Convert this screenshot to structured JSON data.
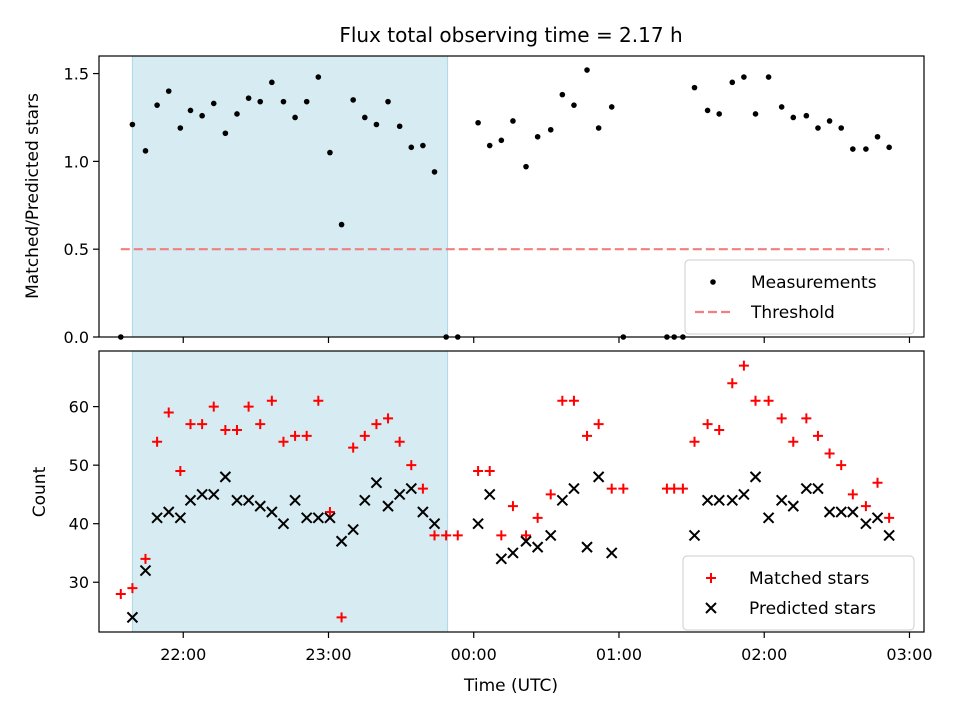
{
  "chart_data": {
    "title": "Flux total observing time = 2.17 h",
    "xlabel": "Time (UTC)",
    "x_unit": "hours UTC",
    "xlim": [
      21.42,
      27.1
    ],
    "x_ticks": [
      {
        "value": 22,
        "label": "22:00"
      },
      {
        "value": 23,
        "label": "23:00"
      },
      {
        "value": 24,
        "label": "00:00"
      },
      {
        "value": 25,
        "label": "01:00"
      },
      {
        "value": 26,
        "label": "02:00"
      },
      {
        "value": 27,
        "label": "03:00"
      }
    ],
    "shaded_interval": {
      "x": [
        21.65,
        23.82
      ],
      "color": "#add8e6"
    },
    "top_panel": {
      "type": "scatter",
      "ylabel": "Matched/Predicted stars",
      "ylim": [
        0,
        1.6
      ],
      "y_ticks": [
        0.0,
        0.5,
        1.0,
        1.5
      ],
      "y_tick_labels": [
        "0.0",
        "0.5",
        "1.0",
        "1.5"
      ],
      "legend_position": "lower-right",
      "series": [
        {
          "name": "Measurements",
          "marker": "dot",
          "color": "#000000",
          "points": [
            [
              21.57,
              0.0
            ],
            [
              21.65,
              1.21
            ],
            [
              21.74,
              1.06
            ],
            [
              21.82,
              1.32
            ],
            [
              21.9,
              1.4
            ],
            [
              21.98,
              1.19
            ],
            [
              22.05,
              1.29
            ],
            [
              22.13,
              1.26
            ],
            [
              22.21,
              1.33
            ],
            [
              22.29,
              1.16
            ],
            [
              22.37,
              1.27
            ],
            [
              22.45,
              1.36
            ],
            [
              22.53,
              1.34
            ],
            [
              22.61,
              1.45
            ],
            [
              22.69,
              1.34
            ],
            [
              22.77,
              1.25
            ],
            [
              22.85,
              1.34
            ],
            [
              22.93,
              1.48
            ],
            [
              23.01,
              1.05
            ],
            [
              23.09,
              0.64
            ],
            [
              23.17,
              1.35
            ],
            [
              23.25,
              1.25
            ],
            [
              23.33,
              1.21
            ],
            [
              23.41,
              1.34
            ],
            [
              23.49,
              1.2
            ],
            [
              23.57,
              1.08
            ],
            [
              23.65,
              1.09
            ],
            [
              23.73,
              0.94
            ],
            [
              23.81,
              0.0
            ],
            [
              23.89,
              0.0
            ],
            [
              24.03,
              1.22
            ],
            [
              24.11,
              1.09
            ],
            [
              24.19,
              1.12
            ],
            [
              24.27,
              1.23
            ],
            [
              24.36,
              0.97
            ],
            [
              24.44,
              1.14
            ],
            [
              24.53,
              1.18
            ],
            [
              24.61,
              1.38
            ],
            [
              24.69,
              1.32
            ],
            [
              24.78,
              1.52
            ],
            [
              24.86,
              1.19
            ],
            [
              24.95,
              1.31
            ],
            [
              25.03,
              0.0
            ],
            [
              25.33,
              0.0
            ],
            [
              25.38,
              0.0
            ],
            [
              25.44,
              0.0
            ],
            [
              25.52,
              1.42
            ],
            [
              25.61,
              1.29
            ],
            [
              25.69,
              1.27
            ],
            [
              25.78,
              1.45
            ],
            [
              25.86,
              1.48
            ],
            [
              25.94,
              1.27
            ],
            [
              26.03,
              1.48
            ],
            [
              26.12,
              1.31
            ],
            [
              26.2,
              1.25
            ],
            [
              26.29,
              1.26
            ],
            [
              26.37,
              1.19
            ],
            [
              26.45,
              1.23
            ],
            [
              26.53,
              1.19
            ],
            [
              26.61,
              1.07
            ],
            [
              26.7,
              1.07
            ],
            [
              26.78,
              1.14
            ],
            [
              26.86,
              1.08
            ]
          ]
        },
        {
          "name": "Threshold",
          "line_style": "dashed",
          "color": "#f08080",
          "points": [
            [
              21.57,
              0.5
            ],
            [
              26.86,
              0.5
            ]
          ]
        }
      ]
    },
    "bottom_panel": {
      "type": "scatter",
      "ylabel": "Count",
      "ylim": [
        21.5,
        69.5
      ],
      "y_ticks": [
        30,
        40,
        50,
        60
      ],
      "y_tick_labels": [
        "30",
        "40",
        "50",
        "60"
      ],
      "legend_position": "lower-right",
      "series": [
        {
          "name": "Matched stars",
          "marker": "plus",
          "color": "#ff0000",
          "points": [
            [
              21.57,
              28
            ],
            [
              21.65,
              29
            ],
            [
              21.74,
              34
            ],
            [
              21.82,
              54
            ],
            [
              21.9,
              59
            ],
            [
              21.98,
              49
            ],
            [
              22.05,
              57
            ],
            [
              22.13,
              57
            ],
            [
              22.21,
              60
            ],
            [
              22.29,
              56
            ],
            [
              22.37,
              56
            ],
            [
              22.45,
              60
            ],
            [
              22.53,
              57
            ],
            [
              22.61,
              61
            ],
            [
              22.69,
              54
            ],
            [
              22.77,
              55
            ],
            [
              22.85,
              55
            ],
            [
              22.93,
              61
            ],
            [
              23.01,
              42
            ],
            [
              23.09,
              24
            ],
            [
              23.17,
              53
            ],
            [
              23.25,
              55
            ],
            [
              23.33,
              57
            ],
            [
              23.41,
              58
            ],
            [
              23.49,
              54
            ],
            [
              23.57,
              50
            ],
            [
              23.65,
              46
            ],
            [
              23.73,
              38
            ],
            [
              23.81,
              38
            ],
            [
              23.89,
              38
            ],
            [
              24.03,
              49
            ],
            [
              24.11,
              49
            ],
            [
              24.19,
              38
            ],
            [
              24.27,
              43
            ],
            [
              24.36,
              38
            ],
            [
              24.44,
              41
            ],
            [
              24.53,
              45
            ],
            [
              24.61,
              61
            ],
            [
              24.69,
              61
            ],
            [
              24.78,
              55
            ],
            [
              24.86,
              57
            ],
            [
              24.95,
              46
            ],
            [
              25.03,
              46
            ],
            [
              25.33,
              46
            ],
            [
              25.38,
              46
            ],
            [
              25.44,
              46
            ],
            [
              25.52,
              54
            ],
            [
              25.61,
              57
            ],
            [
              25.69,
              56
            ],
            [
              25.78,
              64
            ],
            [
              25.86,
              67
            ],
            [
              25.94,
              61
            ],
            [
              26.03,
              61
            ],
            [
              26.12,
              58
            ],
            [
              26.2,
              54
            ],
            [
              26.29,
              58
            ],
            [
              26.37,
              55
            ],
            [
              26.45,
              52
            ],
            [
              26.53,
              50
            ],
            [
              26.61,
              45
            ],
            [
              26.7,
              43
            ],
            [
              26.78,
              47
            ],
            [
              26.86,
              41
            ]
          ]
        },
        {
          "name": "Predicted stars",
          "marker": "x",
          "color": "#000000",
          "points": [
            [
              21.65,
              24
            ],
            [
              21.74,
              32
            ],
            [
              21.82,
              41
            ],
            [
              21.9,
              42
            ],
            [
              21.98,
              41
            ],
            [
              22.05,
              44
            ],
            [
              22.13,
              45
            ],
            [
              22.21,
              45
            ],
            [
              22.29,
              48
            ],
            [
              22.37,
              44
            ],
            [
              22.45,
              44
            ],
            [
              22.53,
              43
            ],
            [
              22.61,
              42
            ],
            [
              22.69,
              40
            ],
            [
              22.77,
              44
            ],
            [
              22.85,
              41
            ],
            [
              22.93,
              41
            ],
            [
              23.01,
              41
            ],
            [
              23.09,
              37
            ],
            [
              23.17,
              39
            ],
            [
              23.25,
              44
            ],
            [
              23.33,
              47
            ],
            [
              23.41,
              43
            ],
            [
              23.49,
              45
            ],
            [
              23.57,
              46
            ],
            [
              23.65,
              42
            ],
            [
              23.73,
              40
            ],
            [
              24.03,
              40
            ],
            [
              24.11,
              45
            ],
            [
              24.19,
              34
            ],
            [
              24.27,
              35
            ],
            [
              24.36,
              37
            ],
            [
              24.44,
              36
            ],
            [
              24.53,
              38
            ],
            [
              24.61,
              44
            ],
            [
              24.69,
              46
            ],
            [
              24.78,
              36
            ],
            [
              24.86,
              48
            ],
            [
              24.95,
              35
            ],
            [
              25.52,
              38
            ],
            [
              25.61,
              44
            ],
            [
              25.69,
              44
            ],
            [
              25.78,
              44
            ],
            [
              25.86,
              45
            ],
            [
              25.94,
              48
            ],
            [
              26.03,
              41
            ],
            [
              26.12,
              44
            ],
            [
              26.2,
              43
            ],
            [
              26.29,
              46
            ],
            [
              26.37,
              46
            ],
            [
              26.45,
              42
            ],
            [
              26.53,
              42
            ],
            [
              26.61,
              42
            ],
            [
              26.7,
              40
            ],
            [
              26.78,
              41
            ],
            [
              26.86,
              38
            ]
          ]
        }
      ]
    }
  }
}
